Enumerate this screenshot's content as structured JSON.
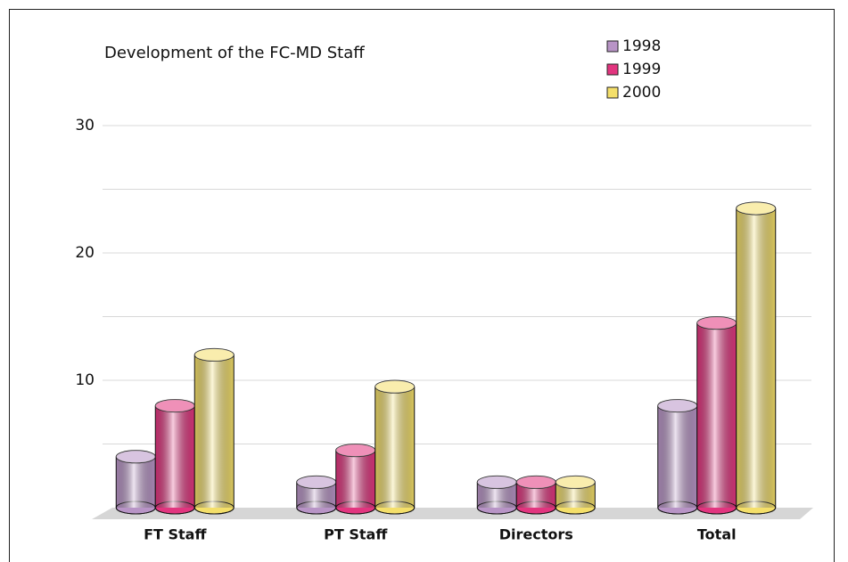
{
  "chart_data": {
    "type": "bar",
    "title": "Development of the FC-MD Staff",
    "categories": [
      "FT Staff",
      "PT Staff",
      "Directors",
      "Total"
    ],
    "series": [
      {
        "name": "1998",
        "color": "#b894c6",
        "values": [
          4,
          2,
          2,
          8
        ]
      },
      {
        "name": "1999",
        "color": "#e2357f",
        "values": [
          8,
          4.5,
          2,
          14.5
        ]
      },
      {
        "name": "2000",
        "color": "#f4df6a",
        "values": [
          12,
          9.5,
          2,
          23.5
        ]
      }
    ],
    "ylim": [
      0,
      30
    ],
    "yticks": [
      10,
      20,
      30
    ],
    "gridlines": [
      5,
      10,
      15,
      20,
      25,
      30
    ],
    "grid": true,
    "legend": "top-right"
  }
}
